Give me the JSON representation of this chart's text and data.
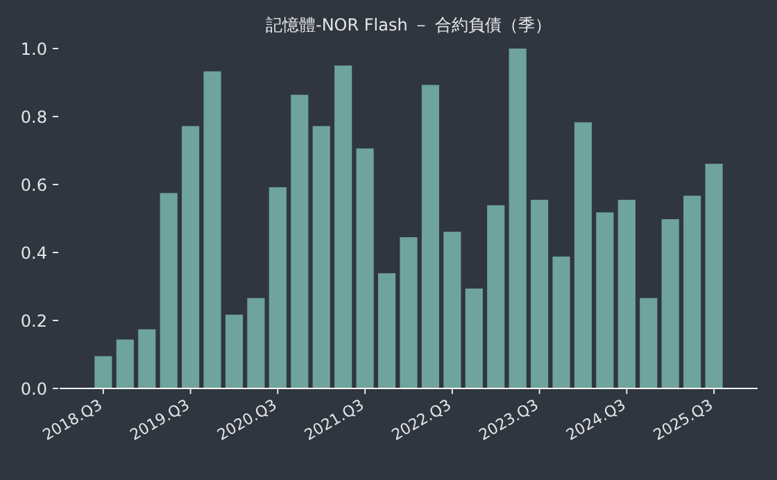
{
  "chart_data": {
    "type": "bar",
    "title": "記憶體-NOR Flash － 合約負債（季）",
    "categories": [
      "2018.Q3",
      null,
      null,
      null,
      "2019.Q3",
      null,
      null,
      null,
      "2020.Q3",
      null,
      null,
      null,
      "2021.Q3",
      null,
      null,
      null,
      "2022.Q3",
      null,
      null,
      null,
      "2023.Q3",
      null,
      null,
      null,
      "2024.Q3",
      null,
      null,
      null,
      "2025.Q3"
    ],
    "values": [
      0.095,
      0.144,
      0.174,
      0.575,
      0.772,
      0.933,
      0.217,
      0.266,
      0.592,
      0.864,
      0.772,
      0.95,
      0.706,
      0.339,
      0.445,
      0.893,
      0.461,
      0.294,
      0.539,
      1.0,
      0.555,
      0.388,
      0.783,
      0.518,
      0.555,
      0.266,
      0.498,
      0.567,
      0.661
    ],
    "color": "#6fa39d",
    "ylim": [
      0,
      1.0
    ],
    "yticks": [
      {
        "value": 0,
        "label": "0.0"
      },
      {
        "value": 0.2,
        "label": "0.2"
      },
      {
        "value": 0.4,
        "label": "0.4"
      },
      {
        "value": 0.6,
        "label": "0.6"
      },
      {
        "value": 0.8,
        "label": "0.8"
      },
      {
        "value": 1.0,
        "label": "1.0"
      }
    ]
  }
}
